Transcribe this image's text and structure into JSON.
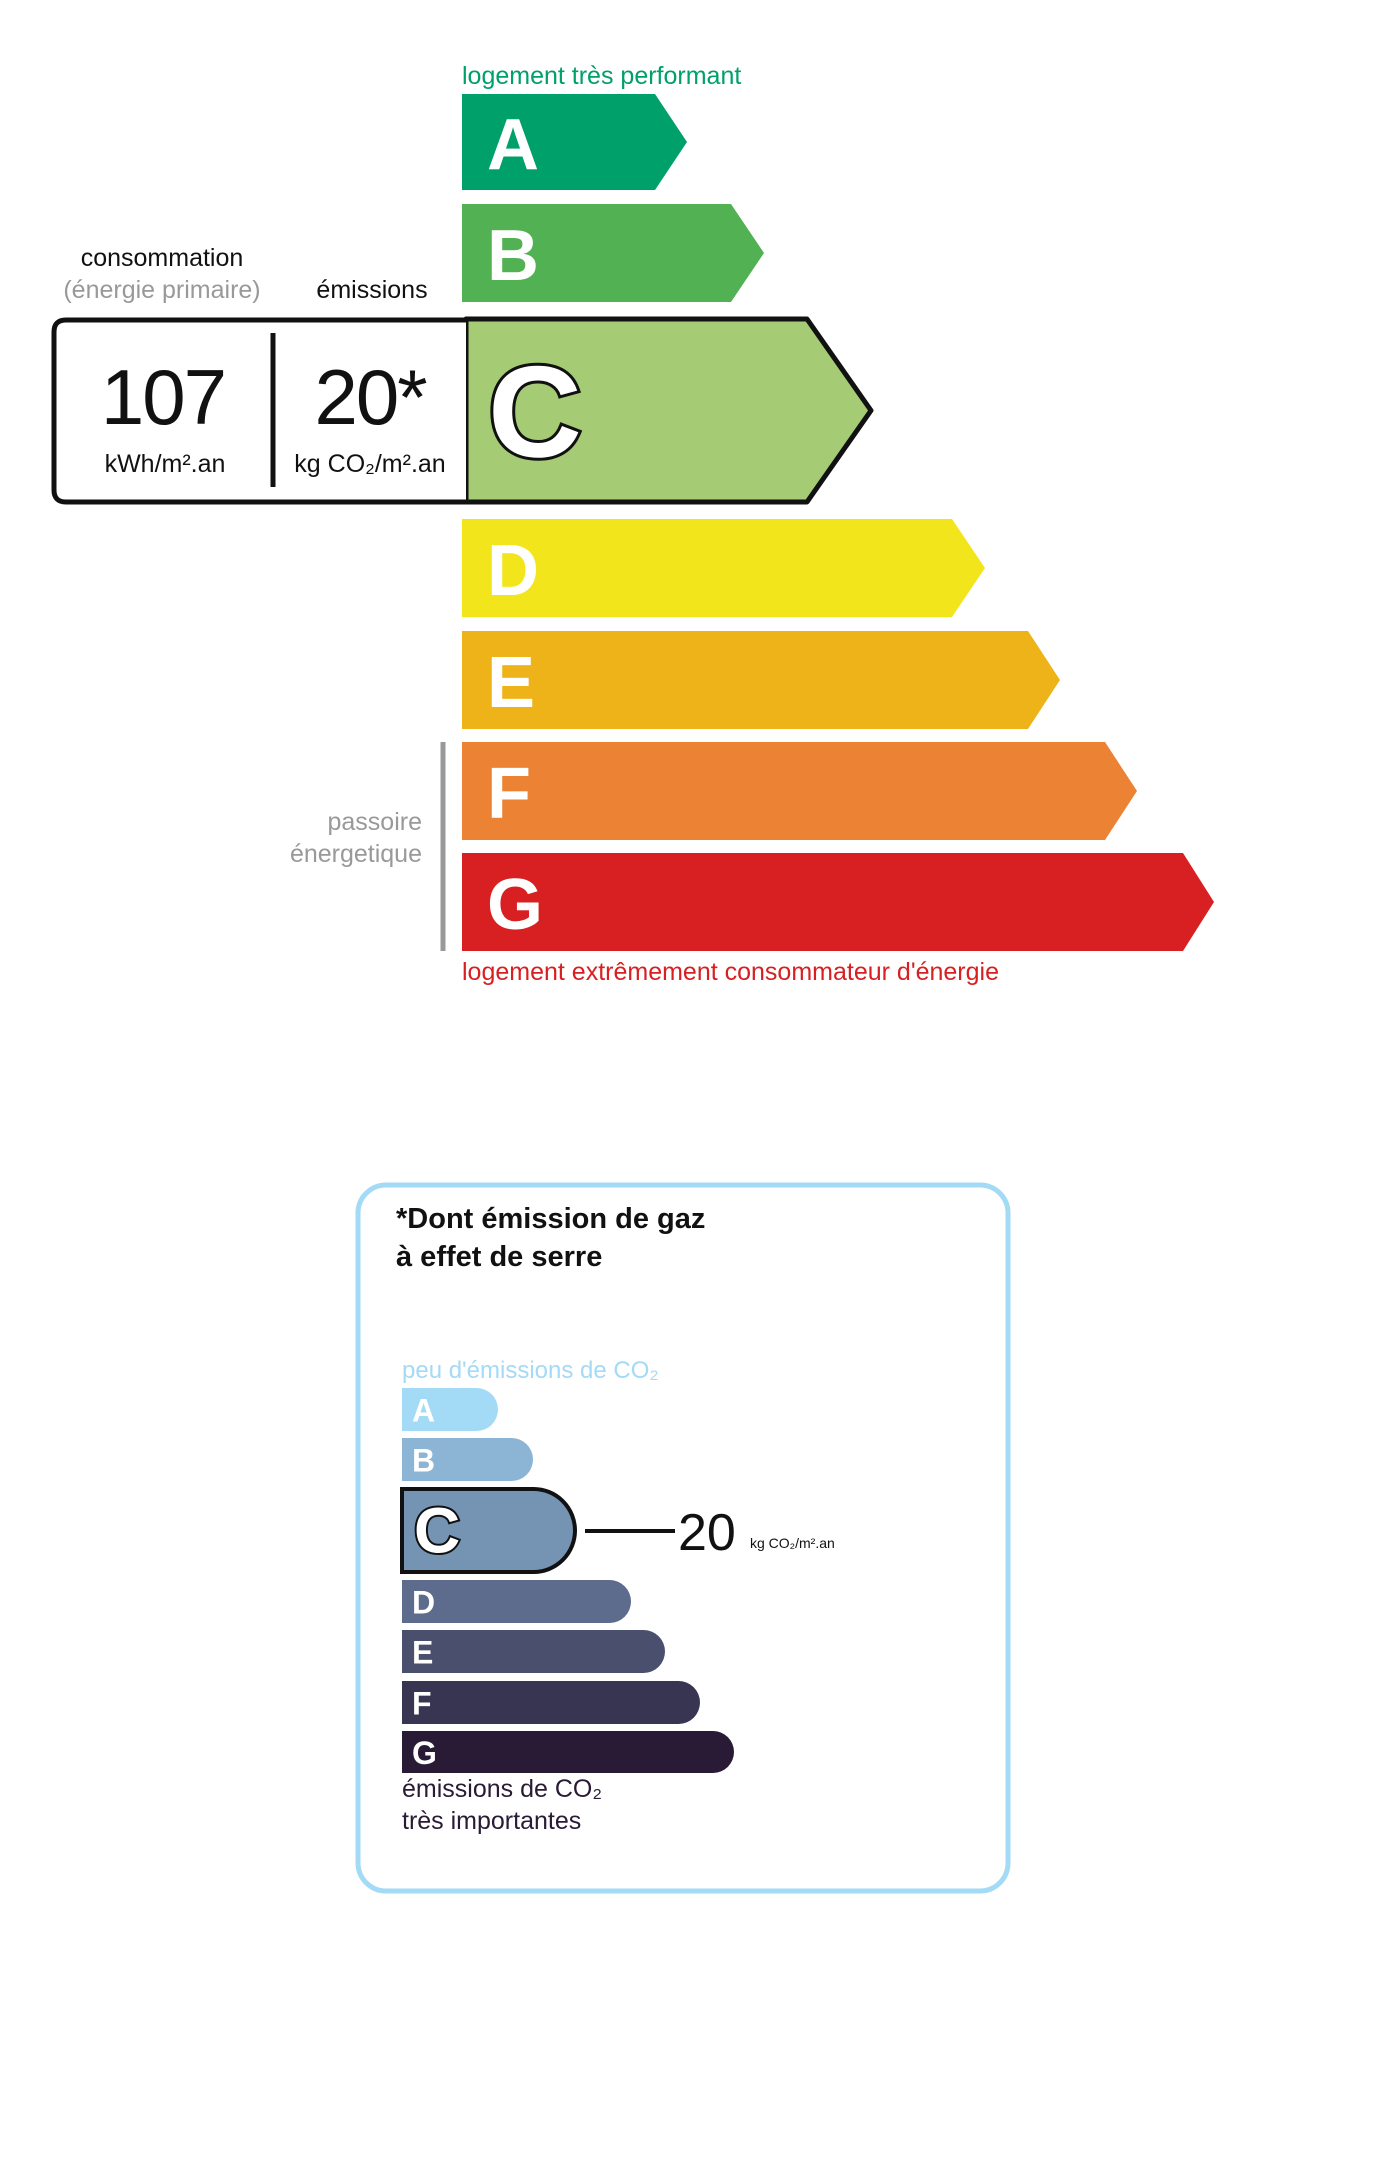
{
  "energy_scale": {
    "top_label": "logement très performant",
    "bottom_label": "logement extrêmement consommateur d'énergie",
    "top_label_color": "#00a06b",
    "bottom_label_color": "#d81f21",
    "classes": [
      {
        "letter": "A",
        "color": "#00a06b"
      },
      {
        "letter": "B",
        "color": "#52b153"
      },
      {
        "letter": "C",
        "color": "#a5cc74"
      },
      {
        "letter": "D",
        "color": "#f2e51c"
      },
      {
        "letter": "E",
        "color": "#efb31a"
      },
      {
        "letter": "F",
        "color": "#eb8234"
      },
      {
        "letter": "G",
        "color": "#d81f21"
      }
    ],
    "current_class": "C",
    "consumption_label": "consommation",
    "consumption_sublabel": "(énergie primaire)",
    "emissions_label": "émissions",
    "consumption_value": "107",
    "consumption_unit": "kWh/m².an",
    "emissions_value": "20*",
    "emissions_unit": "kg CO₂/m².an",
    "passoire_line1": "passoire",
    "passoire_line2": "énergetique"
  },
  "ges_box": {
    "title_line1": "*Dont émission de gaz",
    "title_line2": "à effet de serre",
    "top_label": "peu d'émissions de CO₂",
    "bottom_label_line1": "émissions de CO₂",
    "bottom_label_line2": "très importantes",
    "border_color": "#a3daf5",
    "classes": [
      {
        "letter": "A",
        "color": "#a3dbf7"
      },
      {
        "letter": "B",
        "color": "#8cb5d5"
      },
      {
        "letter": "C",
        "color": "#7593b3"
      },
      {
        "letter": "D",
        "color": "#5d6b8c"
      },
      {
        "letter": "E",
        "color": "#4b4f6e"
      },
      {
        "letter": "F",
        "color": "#383552"
      },
      {
        "letter": "G",
        "color": "#291a35"
      }
    ],
    "current_class": "C",
    "value": "20",
    "unit": "kg CO₂/m².an"
  }
}
